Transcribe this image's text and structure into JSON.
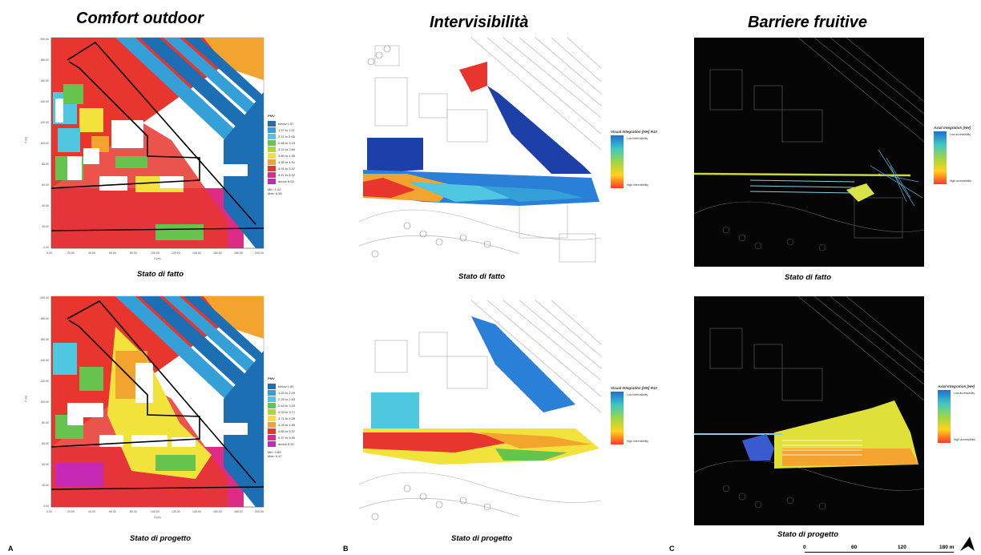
{
  "titles": {
    "a": "Comfort outdoor",
    "b": "Intervisibilità",
    "c": "Barriere fruitive"
  },
  "captions": {
    "a_top": "Stato di fatto",
    "a_bottom": "Stato di progetto",
    "b_top": "Stato di fatto",
    "b_bottom": "Stato di progetto",
    "c_top": "Stato di fatto",
    "c_bottom": "Stato di progetto"
  },
  "letters": {
    "a": "A",
    "b": "B",
    "c": "C"
  },
  "legend_top": {
    "title": "PMV",
    "items": [
      "below 1.57",
      "1.57 to 2.11",
      "2.11 to 2.68",
      "2.68 to 3.24",
      "3.24 to 3.80",
      "3.80 to 4.35",
      "4.35 to 4.91",
      "4.91 to 5.47",
      "5.47 to 6.02",
      "above 6.02"
    ],
    "colors": [
      "#1d6fb4",
      "#35a0d8",
      "#4fc7e0",
      "#66c34d",
      "#b5d336",
      "#f2e23c",
      "#f3a42e",
      "#e8362e",
      "#dd2c86",
      "#c42ab3"
    ],
    "min": "Min: 1.02",
    "max": "Max: 6.58"
  },
  "legend_bottom": {
    "title": "PMV",
    "items": [
      "below 1.83",
      "1.83 to 2.29",
      "2.29 to 2.63",
      "2.63 to 3.03",
      "3.03 to 3.71",
      "3.71 to 4.28",
      "4.28 to 4.85",
      "4.85 to 5.37",
      "5.37 to 5.90",
      "above 5.92"
    ],
    "min": "Min: 0.89",
    "max": "Max: 6.47"
  },
  "vis_legend_top": {
    "title": "Visual Integration [HH] R10",
    "low": "Low intervisibility",
    "high": "High intervisibility"
  },
  "vis_legend_bottom": {
    "title": "Visual Integration [HH] R10",
    "low": "Low intervisibility",
    "high": "High intervisibility"
  },
  "axial_legend_top": {
    "title": "Axial Integration [HH]",
    "low": "Low accessibility",
    "high": "High accessibility"
  },
  "axial_legend_bottom": {
    "title": "Axial Integration [HH]",
    "low": "Low accessibility",
    "high": "High accessibility"
  },
  "axis": {
    "y_ticks": [
      "200.00",
      "180.00",
      "160.00",
      "140.00",
      "120.00",
      "100.00",
      "80.00",
      "60.00",
      "40.00",
      "20.00",
      "0.00"
    ],
    "x_ticks": [
      "0.00",
      "20.00",
      "40.00",
      "60.00",
      "80.00",
      "100.00",
      "120.00",
      "140.00",
      "160.00",
      "180.00",
      "200.00"
    ],
    "x_label": "X (m)",
    "y_label": "Y (m)"
  },
  "scale_bar": {
    "labels": [
      "0",
      "60",
      "120",
      "180 m"
    ]
  },
  "colors": {
    "red": "#e8362e",
    "magenta": "#dd2c86",
    "blue_dark": "#1d6fb4",
    "cyan": "#35a0d8",
    "green": "#66c34d",
    "yellow": "#f2e23c",
    "orange": "#f3a42e",
    "white": "#ffffff",
    "black": "#000000"
  }
}
